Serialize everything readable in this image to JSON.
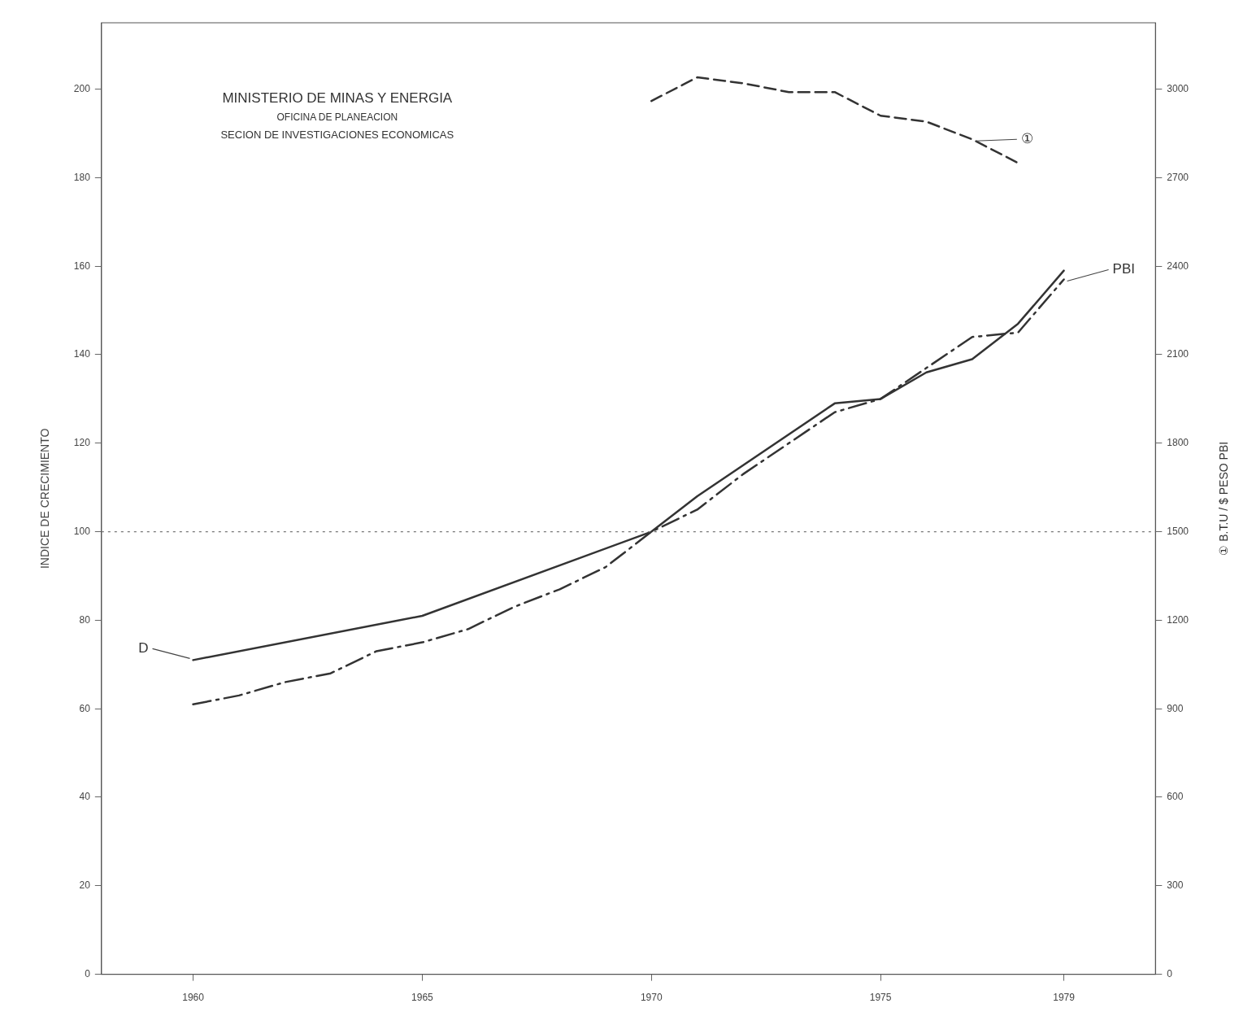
{
  "chart_data": {
    "type": "line",
    "title": "MINISTERIO DE MINAS Y ENERGIA",
    "subtitle": "OFICINA DE PLANEACION",
    "xlabel": null,
    "ylabel": "INDICE DE CRECIMIENTO",
    "y2label": "① B.T.U / $ PESO PBI",
    "annotations": [
      "SECION DE INVESTIGACIONES ECONOMICAS"
    ],
    "xlim": [
      1958,
      1981
    ],
    "xticks": [
      1960,
      1965,
      1970,
      1975,
      1979
    ],
    "ylim": [
      0,
      215
    ],
    "yticks": [
      0,
      20,
      40,
      60,
      80,
      100,
      120,
      140,
      160,
      180,
      200
    ],
    "y2lim": [
      0,
      3225
    ],
    "y2ticks": [
      0,
      300,
      600,
      900,
      1200,
      1500,
      1800,
      2100,
      2400,
      2700,
      3000
    ],
    "ref_lines": [
      {
        "axis": "y",
        "value": 100,
        "line_style": "dotted",
        "color": "#777777"
      }
    ],
    "grid": false,
    "legend": false,
    "marker": "none",
    "series": [
      {
        "name": "D",
        "color": "#333333",
        "line_style": "solid",
        "x": [
          1960,
          1965,
          1970,
          1971,
          1974,
          1975,
          1976,
          1977,
          1978,
          1979
        ],
        "values": [
          71,
          81,
          100,
          108,
          129,
          130,
          136,
          139,
          147,
          159
        ]
      },
      {
        "name": "PBI",
        "color": "#333333",
        "line_style": "dashdot",
        "x": [
          1960,
          1961,
          1962,
          1963,
          1964,
          1965,
          1966,
          1967,
          1968,
          1969,
          1970,
          1971,
          1972,
          1973,
          1974,
          1975,
          1976,
          1977,
          1978,
          1979
        ],
        "values": [
          61,
          63,
          66,
          68,
          73,
          75,
          78,
          83,
          87,
          92,
          100,
          105,
          113,
          120,
          127,
          130,
          137,
          144,
          145,
          157
        ]
      },
      {
        "name": "①",
        "color": "#333333",
        "line_style": "dashed",
        "axis": "y2",
        "x": [
          1970,
          1971,
          1972,
          1973,
          1974,
          1975,
          1976,
          1977,
          1978
        ],
        "values": [
          2960,
          3040,
          3020,
          2990,
          2990,
          2910,
          2890,
          2830,
          2750
        ]
      }
    ]
  }
}
